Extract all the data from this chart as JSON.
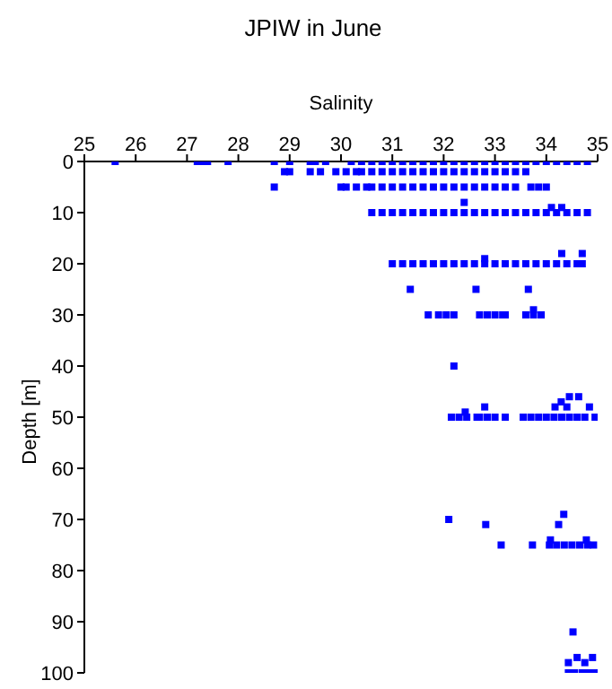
{
  "chart_data": {
    "type": "scatter",
    "title": "JPIW in June",
    "xlabel": "Salinity",
    "ylabel": "Depth [m]",
    "x": [
      25.6,
      27.2,
      27.3,
      27.4,
      27.8,
      28.7,
      29.0,
      29.4,
      29.5,
      29.7,
      30.2,
      30.4,
      30.6,
      30.8,
      31.0,
      31.2,
      31.4,
      31.6,
      31.8,
      32.0,
      32.2,
      32.4,
      32.6,
      32.8,
      33.0,
      33.2,
      33.4,
      33.6,
      33.8,
      34.0,
      34.2,
      34.4,
      34.6,
      34.8,
      28.9,
      29.0,
      29.4,
      29.6,
      29.9,
      30.1,
      30.3,
      30.4,
      30.6,
      30.8,
      31.0,
      31.2,
      31.4,
      31.6,
      31.8,
      32.0,
      32.2,
      32.4,
      32.6,
      32.8,
      33.0,
      33.2,
      33.4,
      33.6,
      28.7,
      30.0,
      30.1,
      30.3,
      30.5,
      30.6,
      30.8,
      31.0,
      31.2,
      31.4,
      31.6,
      31.8,
      32.0,
      32.2,
      32.4,
      32.6,
      32.8,
      33.0,
      33.2,
      33.4,
      33.7,
      33.85,
      34.0,
      32.4,
      34.1,
      34.3,
      30.6,
      30.8,
      31.0,
      31.2,
      31.4,
      31.6,
      31.8,
      32.0,
      32.2,
      32.4,
      32.6,
      32.8,
      33.0,
      33.2,
      33.4,
      33.6,
      33.8,
      34.0,
      34.2,
      34.4,
      34.6,
      34.8,
      34.3,
      34.7,
      32.8,
      31.0,
      31.2,
      31.4,
      31.6,
      31.8,
      32.0,
      32.2,
      32.4,
      32.6,
      32.8,
      33.0,
      33.2,
      33.4,
      33.6,
      33.8,
      34.0,
      34.2,
      34.4,
      34.6,
      34.7,
      31.35,
      32.63,
      33.65,
      31.7,
      31.9,
      32.05,
      32.2,
      32.7,
      32.85,
      33.0,
      33.15,
      33.2,
      33.6,
      33.75,
      33.9,
      33.75,
      32.2,
      32.15,
      32.3,
      32.45,
      32.65,
      32.7,
      32.85,
      33.0,
      33.2,
      33.55,
      33.7,
      33.85,
      34.0,
      34.15,
      34.3,
      34.45,
      34.6,
      34.75,
      34.95,
      34.63,
      34.45,
      34.29,
      34.17,
      34.84,
      32.8,
      32.42,
      34.4,
      32.1,
      32.82,
      34.34,
      34.24,
      34.08,
      34.78,
      33.12,
      33.73,
      34.06,
      34.2,
      34.35,
      34.5,
      34.65,
      34.8,
      34.92,
      34.52,
      34.43,
      34.6,
      34.75,
      34.9,
      34.43,
      34.55,
      34.7,
      34.8,
      34.93
    ],
    "values": [
      0,
      0,
      0,
      0,
      0,
      0,
      0,
      0,
      0,
      0,
      0,
      0,
      0,
      0,
      0,
      0,
      0,
      0,
      0,
      0,
      0,
      0,
      0,
      0,
      0,
      0,
      0,
      0,
      0,
      0,
      0,
      0,
      0,
      0,
      2,
      2,
      2,
      2,
      2,
      2,
      2,
      2,
      2,
      2,
      2,
      2,
      2,
      2,
      2,
      2,
      2,
      2,
      2,
      2,
      2,
      2,
      2,
      2,
      5,
      5,
      5,
      5,
      5,
      5,
      5,
      5,
      5,
      5,
      5,
      5,
      5,
      5,
      5,
      5,
      5,
      5,
      5,
      5,
      5,
      5,
      5,
      8,
      9,
      9,
      10,
      10,
      10,
      10,
      10,
      10,
      10,
      10,
      10,
      10,
      10,
      10,
      10,
      10,
      10,
      10,
      10,
      10,
      10,
      10,
      10,
      10,
      18,
      18,
      19,
      20,
      20,
      20,
      20,
      20,
      20,
      20,
      20,
      20,
      20,
      20,
      20,
      20,
      20,
      20,
      20,
      20,
      20,
      20,
      20,
      25,
      25,
      25,
      30,
      30,
      30,
      30,
      30,
      30,
      30,
      30,
      30,
      30,
      30,
      30,
      29,
      40,
      50,
      50,
      50,
      50,
      50,
      50,
      50,
      50,
      50,
      50,
      50,
      50,
      50,
      50,
      50,
      50,
      50,
      50,
      46,
      46,
      47,
      48,
      48,
      48,
      49,
      48,
      70,
      71,
      69,
      71,
      74,
      74,
      75,
      75,
      75,
      75,
      75,
      75,
      75,
      75,
      75,
      92,
      98,
      97,
      98,
      97,
      100,
      100,
      100,
      100,
      100
    ],
    "color": "#0000ff",
    "marker": "square",
    "xlim": [
      25,
      35
    ],
    "xticks": [
      25,
      26,
      27,
      28,
      29,
      30,
      31,
      32,
      33,
      34,
      35
    ],
    "ylim": [
      100,
      0
    ],
    "yticks": [
      0,
      10,
      20,
      30,
      40,
      50,
      60,
      70,
      80,
      90,
      100
    ],
    "grid": false,
    "legend": false
  }
}
